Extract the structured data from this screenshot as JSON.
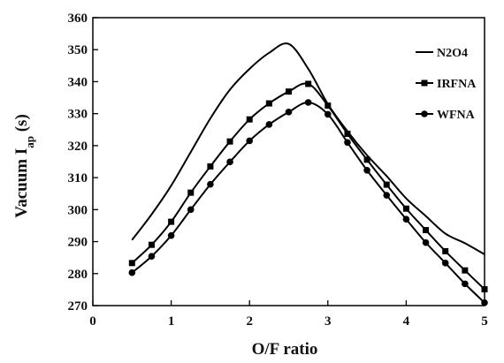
{
  "chart_data": {
    "type": "line",
    "xlabel": "O/F ratio",
    "ylabel_main": "Vacuum I",
    "ylabel_sub": "ap",
    "ylabel_unit": " (s)",
    "xlim": [
      0,
      5
    ],
    "ylim": [
      270,
      360
    ],
    "xticks": [
      0,
      1,
      2,
      3,
      4,
      5
    ],
    "yticks": [
      270,
      280,
      290,
      300,
      310,
      320,
      330,
      340,
      350,
      360
    ],
    "grid": false,
    "legend_position": "top-right",
    "series": [
      {
        "name": "N2O4",
        "marker": "none",
        "x": [
          0.5,
          0.75,
          1.0,
          1.25,
          1.5,
          1.75,
          2.0,
          2.25,
          2.5,
          2.75,
          3.0,
          3.25,
          3.5,
          3.75,
          4.0,
          4.25,
          4.5,
          4.75,
          5.0
        ],
        "y": [
          290.5,
          298.5,
          307.5,
          318,
          328.5,
          337.5,
          344,
          349,
          351.8,
          344,
          333,
          324.5,
          317,
          310.5,
          303.5,
          298,
          292.5,
          289.5,
          286
        ]
      },
      {
        "name": "IRFNA",
        "marker": "square",
        "x": [
          0.5,
          0.75,
          1.0,
          1.25,
          1.5,
          1.75,
          2.0,
          2.25,
          2.5,
          2.75,
          3.0,
          3.25,
          3.5,
          3.75,
          4.0,
          4.25,
          4.5,
          4.75,
          5.0
        ],
        "y": [
          283.3,
          289,
          296.2,
          305.3,
          313.5,
          321.3,
          328.2,
          333.2,
          336.9,
          339.3,
          332.5,
          323.7,
          315.6,
          307.8,
          300.3,
          293.6,
          287,
          281,
          275.1
        ]
      },
      {
        "name": "WFNA",
        "marker": "circle",
        "x": [
          0.5,
          0.75,
          1.0,
          1.25,
          1.5,
          1.75,
          2.0,
          2.25,
          2.5,
          2.75,
          3.0,
          3.25,
          3.5,
          3.75,
          4.0,
          4.25,
          4.5,
          4.75,
          5.0
        ],
        "y": [
          280.3,
          285.4,
          291.9,
          300,
          307.9,
          314.9,
          321.5,
          326.6,
          330.5,
          333.5,
          329.8,
          321,
          312.3,
          304.5,
          297,
          289.7,
          283.3,
          276.8,
          270.9
        ]
      }
    ]
  }
}
